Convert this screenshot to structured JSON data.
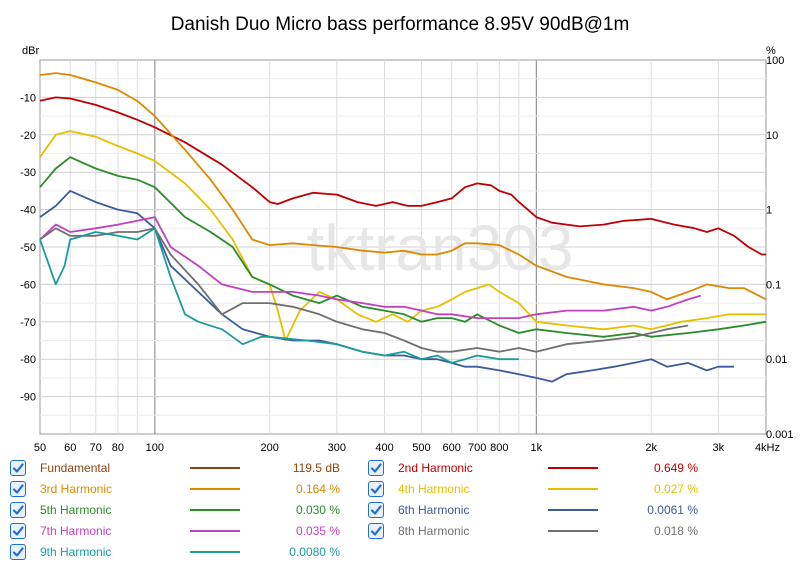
{
  "chart_data": {
    "type": "line",
    "title": "Danish Duo Micro bass performance 8.95V 90dB@1m",
    "watermark": "tktran303",
    "left_axis": {
      "unit": "dBr",
      "ticks": [
        "-10",
        "-20",
        "-30",
        "-40",
        "-50",
        "-60",
        "-70",
        "-80",
        "-90"
      ],
      "range": [
        -100,
        0
      ]
    },
    "right_axis": {
      "unit": "%",
      "ticks": [
        "100",
        "10",
        "1",
        "0.1",
        "0.01",
        "0.001"
      ],
      "scale": "log",
      "range": [
        0.001,
        100
      ]
    },
    "x_axis": {
      "scale": "log",
      "range": [
        50,
        4000
      ],
      "ticks": [
        {
          "v": 50,
          "label": "50"
        },
        {
          "v": 60,
          "label": "60"
        },
        {
          "v": 70,
          "label": "70"
        },
        {
          "v": 80,
          "label": "80"
        },
        {
          "v": 100,
          "label": "100"
        },
        {
          "v": 200,
          "label": "200"
        },
        {
          "v": 300,
          "label": "300"
        },
        {
          "v": 400,
          "label": "400"
        },
        {
          "v": 500,
          "label": "500"
        },
        {
          "v": 600,
          "label": "600"
        },
        {
          "v": 700,
          "label": "700"
        },
        {
          "v": 800,
          "label": "800"
        },
        {
          "v": 1000,
          "label": "1k"
        },
        {
          "v": 2000,
          "label": "2k"
        },
        {
          "v": 3000,
          "label": "3k"
        },
        {
          "v": 4000,
          "label": "4kHz"
        }
      ]
    },
    "grid": true,
    "series": [
      {
        "name": "Fundamental",
        "value": "119.5 dB",
        "color": "#8b4513",
        "points": []
      },
      {
        "name": "2nd Harmonic",
        "value": "0.649 %",
        "color": "#c00000",
        "points": [
          [
            50,
            -10.9
          ],
          [
            55,
            -10
          ],
          [
            60,
            -10.3
          ],
          [
            70,
            -12
          ],
          [
            80,
            -14
          ],
          [
            90,
            -16
          ],
          [
            100,
            -18
          ],
          [
            120,
            -22
          ],
          [
            150,
            -28
          ],
          [
            180,
            -34
          ],
          [
            200,
            -38
          ],
          [
            210,
            -38.5
          ],
          [
            230,
            -37
          ],
          [
            260,
            -35.5
          ],
          [
            300,
            -36
          ],
          [
            340,
            -38
          ],
          [
            380,
            -39
          ],
          [
            420,
            -38
          ],
          [
            460,
            -39
          ],
          [
            500,
            -39
          ],
          [
            550,
            -38
          ],
          [
            600,
            -37
          ],
          [
            650,
            -34
          ],
          [
            700,
            -33
          ],
          [
            760,
            -33.5
          ],
          [
            800,
            -35
          ],
          [
            860,
            -36
          ],
          [
            900,
            -38
          ],
          [
            950,
            -40
          ],
          [
            1000,
            -42
          ],
          [
            1100,
            -43.5
          ],
          [
            1300,
            -44.5
          ],
          [
            1500,
            -44
          ],
          [
            1700,
            -43
          ],
          [
            2000,
            -42.5
          ],
          [
            2300,
            -44
          ],
          [
            2600,
            -45
          ],
          [
            2800,
            -46
          ],
          [
            3000,
            -45
          ],
          [
            3300,
            -47
          ],
          [
            3600,
            -50
          ],
          [
            3900,
            -52
          ],
          [
            4000,
            -52
          ]
        ]
      },
      {
        "name": "3rd Harmonic",
        "value": "0.164 %",
        "color": "#dd8800",
        "points": [
          [
            50,
            -4
          ],
          [
            55,
            -3.5
          ],
          [
            60,
            -4
          ],
          [
            70,
            -6
          ],
          [
            80,
            -8
          ],
          [
            90,
            -11
          ],
          [
            100,
            -15
          ],
          [
            120,
            -24
          ],
          [
            140,
            -32
          ],
          [
            160,
            -40
          ],
          [
            180,
            -48
          ],
          [
            200,
            -49.5
          ],
          [
            230,
            -49
          ],
          [
            260,
            -49.5
          ],
          [
            300,
            -50
          ],
          [
            350,
            -51
          ],
          [
            400,
            -51.5
          ],
          [
            450,
            -51
          ],
          [
            500,
            -52
          ],
          [
            550,
            -52
          ],
          [
            600,
            -51
          ],
          [
            650,
            -49
          ],
          [
            700,
            -49
          ],
          [
            800,
            -49.5
          ],
          [
            900,
            -52
          ],
          [
            1000,
            -55
          ],
          [
            1200,
            -58
          ],
          [
            1500,
            -60
          ],
          [
            1800,
            -61
          ],
          [
            2000,
            -62
          ],
          [
            2200,
            -64
          ],
          [
            2500,
            -62
          ],
          [
            2800,
            -60
          ],
          [
            3200,
            -61
          ],
          [
            3500,
            -61
          ],
          [
            4000,
            -64
          ]
        ]
      },
      {
        "name": "4th Harmonic",
        "value": "0.027 %",
        "color": "#e6c000",
        "points": [
          [
            50,
            -26
          ],
          [
            55,
            -20
          ],
          [
            60,
            -19
          ],
          [
            70,
            -20.5
          ],
          [
            80,
            -23
          ],
          [
            90,
            -25
          ],
          [
            100,
            -27
          ],
          [
            120,
            -33
          ],
          [
            140,
            -40
          ],
          [
            160,
            -48
          ],
          [
            180,
            -58
          ],
          [
            200,
            -60
          ],
          [
            210,
            -67
          ],
          [
            220,
            -75
          ],
          [
            240,
            -67
          ],
          [
            270,
            -62
          ],
          [
            300,
            -64
          ],
          [
            340,
            -68
          ],
          [
            380,
            -70
          ],
          [
            420,
            -68
          ],
          [
            460,
            -70
          ],
          [
            500,
            -67
          ],
          [
            550,
            -66
          ],
          [
            600,
            -64
          ],
          [
            650,
            -62
          ],
          [
            700,
            -61
          ],
          [
            750,
            -60
          ],
          [
            800,
            -62
          ],
          [
            900,
            -65
          ],
          [
            1000,
            -70
          ],
          [
            1200,
            -71
          ],
          [
            1500,
            -72
          ],
          [
            1800,
            -71
          ],
          [
            2000,
            -72
          ],
          [
            2400,
            -70
          ],
          [
            2800,
            -69
          ],
          [
            3200,
            -68
          ],
          [
            3600,
            -68
          ],
          [
            4000,
            -68
          ]
        ]
      },
      {
        "name": "5th Harmonic",
        "value": "0.030 %",
        "color": "#2a8c2a",
        "points": [
          [
            50,
            -34
          ],
          [
            55,
            -29
          ],
          [
            60,
            -26
          ],
          [
            70,
            -29
          ],
          [
            80,
            -31
          ],
          [
            90,
            -32
          ],
          [
            100,
            -34
          ],
          [
            120,
            -42
          ],
          [
            140,
            -46
          ],
          [
            160,
            -50
          ],
          [
            180,
            -58
          ],
          [
            200,
            -60
          ],
          [
            230,
            -63
          ],
          [
            270,
            -65
          ],
          [
            300,
            -63
          ],
          [
            350,
            -66
          ],
          [
            400,
            -67
          ],
          [
            450,
            -68
          ],
          [
            500,
            -70
          ],
          [
            550,
            -69
          ],
          [
            600,
            -69
          ],
          [
            650,
            -70
          ],
          [
            700,
            -68
          ],
          [
            800,
            -71
          ],
          [
            900,
            -73
          ],
          [
            1000,
            -72
          ],
          [
            1200,
            -73
          ],
          [
            1500,
            -74
          ],
          [
            1800,
            -73
          ],
          [
            2000,
            -74
          ],
          [
            2500,
            -73
          ],
          [
            3000,
            -72
          ],
          [
            3500,
            -71
          ],
          [
            4000,
            -70
          ]
        ]
      },
      {
        "name": "6th Harmonic",
        "value": "0.0061 %",
        "color": "#3b5b9a",
        "points": [
          [
            50,
            -42
          ],
          [
            55,
            -39
          ],
          [
            60,
            -35
          ],
          [
            70,
            -38
          ],
          [
            80,
            -40
          ],
          [
            90,
            -41
          ],
          [
            100,
            -45
          ],
          [
            110,
            -55
          ],
          [
            130,
            -62
          ],
          [
            150,
            -68
          ],
          [
            170,
            -72
          ],
          [
            200,
            -74
          ],
          [
            230,
            -75
          ],
          [
            270,
            -75
          ],
          [
            300,
            -76
          ],
          [
            350,
            -78
          ],
          [
            400,
            -79
          ],
          [
            450,
            -79
          ],
          [
            500,
            -80
          ],
          [
            550,
            -80
          ],
          [
            600,
            -81
          ],
          [
            650,
            -82
          ],
          [
            700,
            -82
          ],
          [
            800,
            -83
          ],
          [
            900,
            -84
          ],
          [
            1000,
            -85
          ],
          [
            1100,
            -86
          ],
          [
            1200,
            -84
          ],
          [
            1400,
            -83
          ],
          [
            1600,
            -82
          ],
          [
            1800,
            -81
          ],
          [
            2000,
            -80
          ],
          [
            2200,
            -82
          ],
          [
            2500,
            -81
          ],
          [
            2800,
            -83
          ],
          [
            3000,
            -82
          ],
          [
            3300,
            -82
          ]
        ]
      },
      {
        "name": "7th Harmonic",
        "value": "0.035 %",
        "color": "#c040c0",
        "points": [
          [
            50,
            -48
          ],
          [
            55,
            -44
          ],
          [
            60,
            -46
          ],
          [
            70,
            -45
          ],
          [
            80,
            -44
          ],
          [
            90,
            -43
          ],
          [
            100,
            -42
          ],
          [
            110,
            -50
          ],
          [
            130,
            -55
          ],
          [
            150,
            -60
          ],
          [
            180,
            -62
          ],
          [
            200,
            -62
          ],
          [
            230,
            -62
          ],
          [
            270,
            -63
          ],
          [
            300,
            -64
          ],
          [
            350,
            -65
          ],
          [
            400,
            -66
          ],
          [
            450,
            -66
          ],
          [
            500,
            -67
          ],
          [
            550,
            -68
          ],
          [
            600,
            -68
          ],
          [
            700,
            -69
          ],
          [
            800,
            -69
          ],
          [
            900,
            -69
          ],
          [
            1000,
            -68
          ],
          [
            1200,
            -67
          ],
          [
            1500,
            -67
          ],
          [
            1800,
            -66
          ],
          [
            2000,
            -67
          ],
          [
            2200,
            -66
          ],
          [
            2500,
            -64
          ],
          [
            2700,
            -63
          ]
        ]
      },
      {
        "name": "8th Harmonic",
        "value": "0.018 %",
        "color": "#707070",
        "points": [
          [
            50,
            -48
          ],
          [
            55,
            -45
          ],
          [
            60,
            -47
          ],
          [
            70,
            -47
          ],
          [
            80,
            -46
          ],
          [
            90,
            -46
          ],
          [
            100,
            -45
          ],
          [
            110,
            -52
          ],
          [
            130,
            -60
          ],
          [
            150,
            -68
          ],
          [
            170,
            -65
          ],
          [
            200,
            -65
          ],
          [
            230,
            -66
          ],
          [
            270,
            -68
          ],
          [
            300,
            -70
          ],
          [
            350,
            -72
          ],
          [
            400,
            -73
          ],
          [
            450,
            -75
          ],
          [
            500,
            -77
          ],
          [
            550,
            -78
          ],
          [
            600,
            -78
          ],
          [
            700,
            -77
          ],
          [
            800,
            -78
          ],
          [
            900,
            -77
          ],
          [
            1000,
            -78
          ],
          [
            1200,
            -76
          ],
          [
            1500,
            -75
          ],
          [
            1800,
            -74
          ],
          [
            2000,
            -73
          ],
          [
            2200,
            -72
          ],
          [
            2500,
            -71
          ]
        ]
      },
      {
        "name": "9th Harmonic",
        "value": "0.0080 %",
        "color": "#1a9c9c",
        "points": [
          [
            50,
            -48
          ],
          [
            55,
            -60
          ],
          [
            58,
            -55
          ],
          [
            60,
            -48
          ],
          [
            70,
            -46
          ],
          [
            80,
            -47
          ],
          [
            90,
            -48
          ],
          [
            100,
            -45
          ],
          [
            110,
            -58
          ],
          [
            120,
            -68
          ],
          [
            130,
            -70
          ],
          [
            150,
            -72
          ],
          [
            170,
            -76
          ],
          [
            190,
            -74
          ],
          [
            200,
            -74
          ],
          [
            250,
            -75
          ],
          [
            300,
            -76
          ],
          [
            350,
            -78
          ],
          [
            400,
            -79
          ],
          [
            450,
            -78
          ],
          [
            500,
            -80
          ],
          [
            550,
            -79
          ],
          [
            600,
            -81
          ],
          [
            650,
            -80
          ],
          [
            700,
            -79
          ],
          [
            800,
            -80
          ],
          [
            900,
            -80
          ]
        ]
      }
    ]
  },
  "legend_checked": true
}
